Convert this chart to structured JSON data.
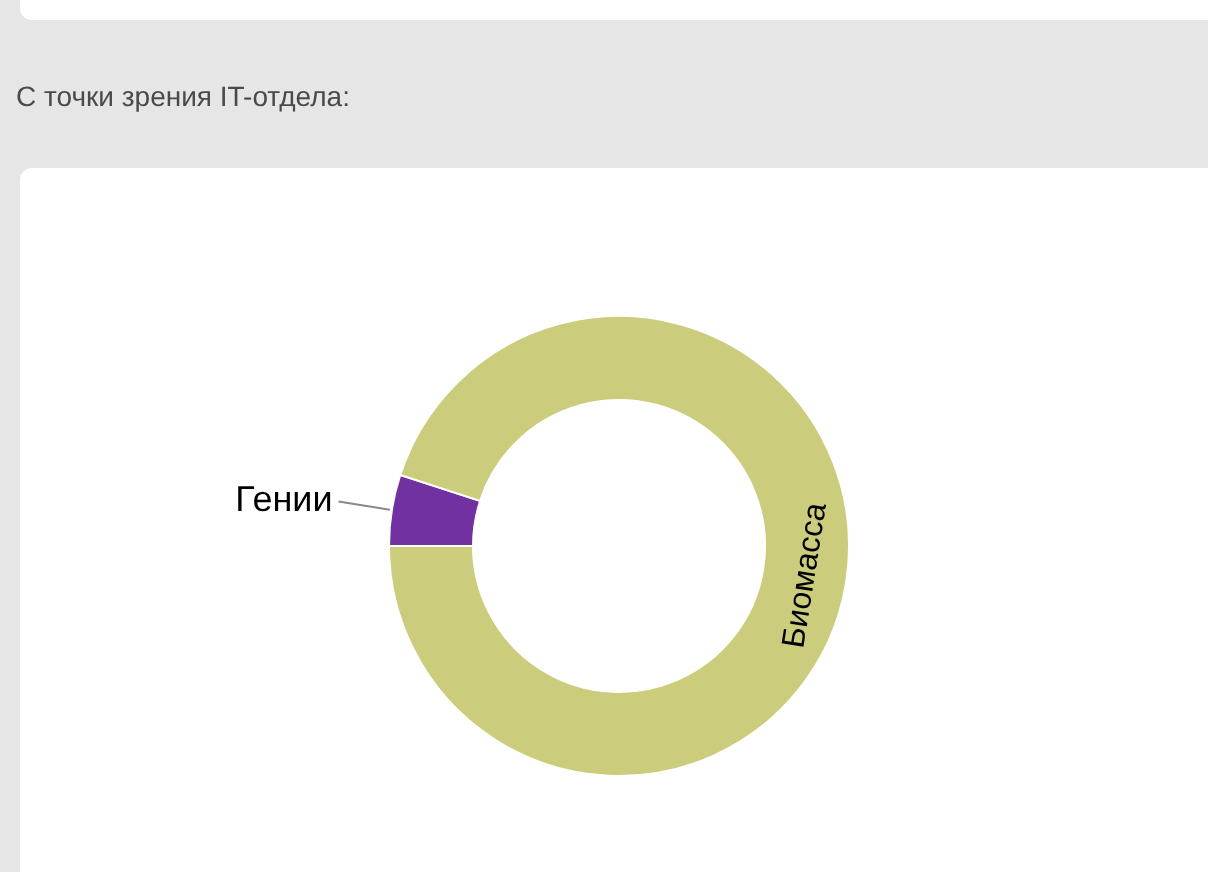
{
  "chart_data": {
    "type": "donut",
    "title": "С точки зрения IT-отдела:",
    "categories": [
      "Гении",
      "Биомасса"
    ],
    "values": [
      5,
      95
    ],
    "colors": [
      "#7231a1",
      "#cbcd7c"
    ]
  }
}
